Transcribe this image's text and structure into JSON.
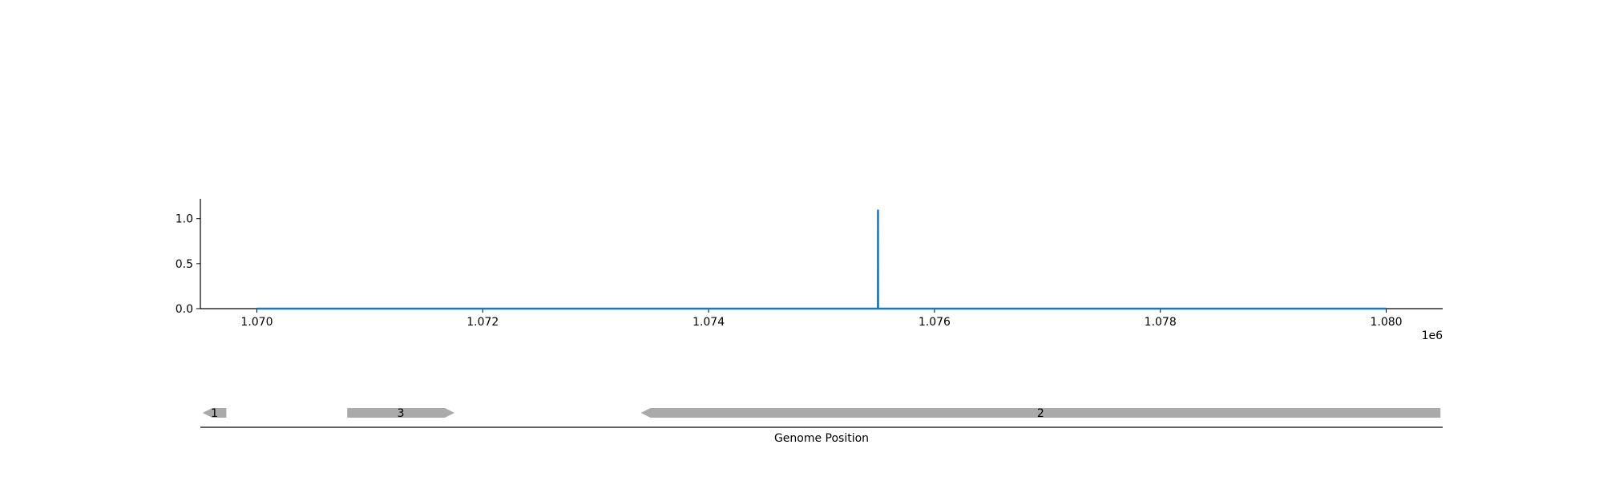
{
  "chart_data": [
    {
      "type": "line",
      "xlim": [
        1069500,
        1080500
      ],
      "ylim": [
        0,
        1.22
      ],
      "x_ticks": [
        1070000,
        1072000,
        1074000,
        1076000,
        1078000,
        1080000
      ],
      "x_tick_labels": [
        "1.070",
        "1.072",
        "1.074",
        "1.076",
        "1.078",
        "1.080"
      ],
      "x_offset_label": "1e6",
      "y_ticks": [
        0,
        0.5,
        1.0
      ],
      "y_tick_labels": [
        "0.0",
        "0.5",
        "1.0"
      ],
      "series": [
        {
          "color": "#1f77b4",
          "x": [
            1070000,
            1075499,
            1075500,
            1075501,
            1080000
          ],
          "y": [
            0,
            0,
            1.1,
            0,
            0
          ]
        }
      ],
      "grid": false
    },
    {
      "type": "gene-track",
      "xlabel": "Genome Position",
      "xlim": [
        1069500,
        1080500
      ],
      "color": "#aaaaaa",
      "genes": [
        {
          "label": "1",
          "start": 1069520,
          "end": 1069730,
          "strand": "-"
        },
        {
          "label": "3",
          "start": 1070800,
          "end": 1071750,
          "strand": "+"
        },
        {
          "label": "2",
          "start": 1073400,
          "end": 1080480,
          "strand": "-"
        }
      ]
    }
  ]
}
